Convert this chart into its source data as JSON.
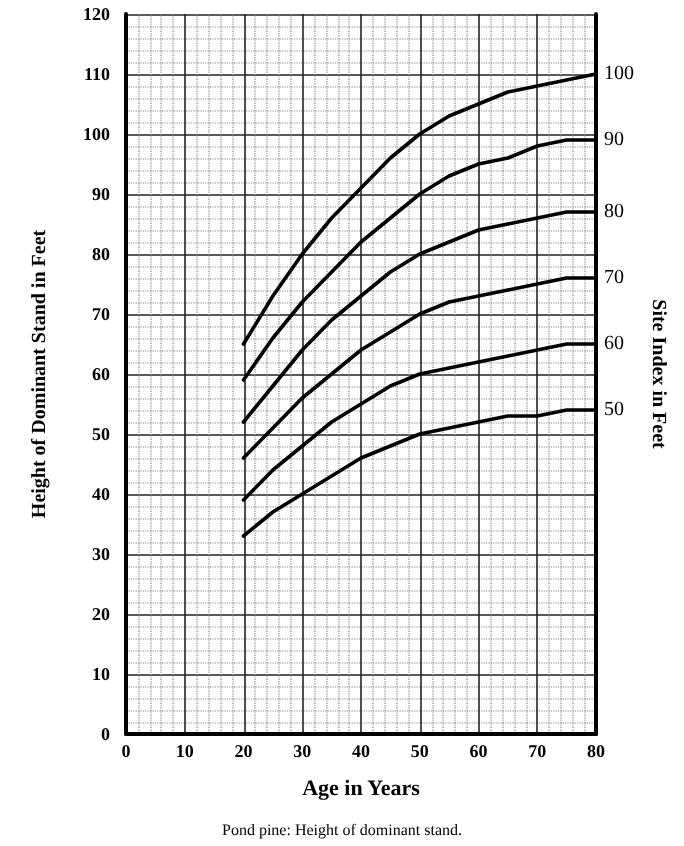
{
  "chart_data": {
    "type": "line",
    "xlabel": "Age in Years",
    "ylabel": "Height of Dominant Stand in Feet",
    "y2label": "Site Index in Feet",
    "annotations": [
      "Pond pine: Height of dominant stand."
    ],
    "x": [
      20,
      25,
      30,
      35,
      40,
      45,
      50,
      55,
      60,
      65,
      70,
      75,
      80
    ],
    "series": [
      {
        "name": "100",
        "color": "#000000",
        "values": [
          65,
          73,
          80,
          86,
          91,
          96,
          100,
          103,
          105,
          107,
          108,
          109,
          110
        ]
      },
      {
        "name": "90",
        "color": "#000000",
        "values": [
          59,
          66,
          72,
          77,
          82,
          86,
          90,
          93,
          95,
          96,
          98,
          99,
          99
        ]
      },
      {
        "name": "80",
        "color": "#000000",
        "values": [
          52,
          58,
          64,
          69,
          73,
          77,
          80,
          82,
          84,
          85,
          86,
          87,
          87
        ]
      },
      {
        "name": "70",
        "color": "#000000",
        "values": [
          46,
          51,
          56,
          60,
          64,
          67,
          70,
          72,
          73,
          74,
          75,
          76,
          76
        ]
      },
      {
        "name": "60",
        "color": "#000000",
        "values": [
          39,
          44,
          48,
          52,
          55,
          58,
          60,
          61,
          62,
          63,
          64,
          65,
          65
        ]
      },
      {
        "name": "50",
        "color": "#000000",
        "values": [
          33,
          37,
          40,
          43,
          46,
          48,
          50,
          51,
          52,
          53,
          53,
          54,
          54
        ]
      }
    ],
    "xlim": [
      0,
      80
    ],
    "xticks": [
      0,
      10,
      20,
      30,
      40,
      50,
      60,
      70,
      80
    ],
    "ylim": [
      0,
      120
    ],
    "yticks": [
      0,
      10,
      20,
      30,
      40,
      50,
      60,
      70,
      80,
      90,
      100,
      110,
      120
    ],
    "grid": true,
    "legend": false,
    "marker": "none",
    "line_style": "solid"
  }
}
